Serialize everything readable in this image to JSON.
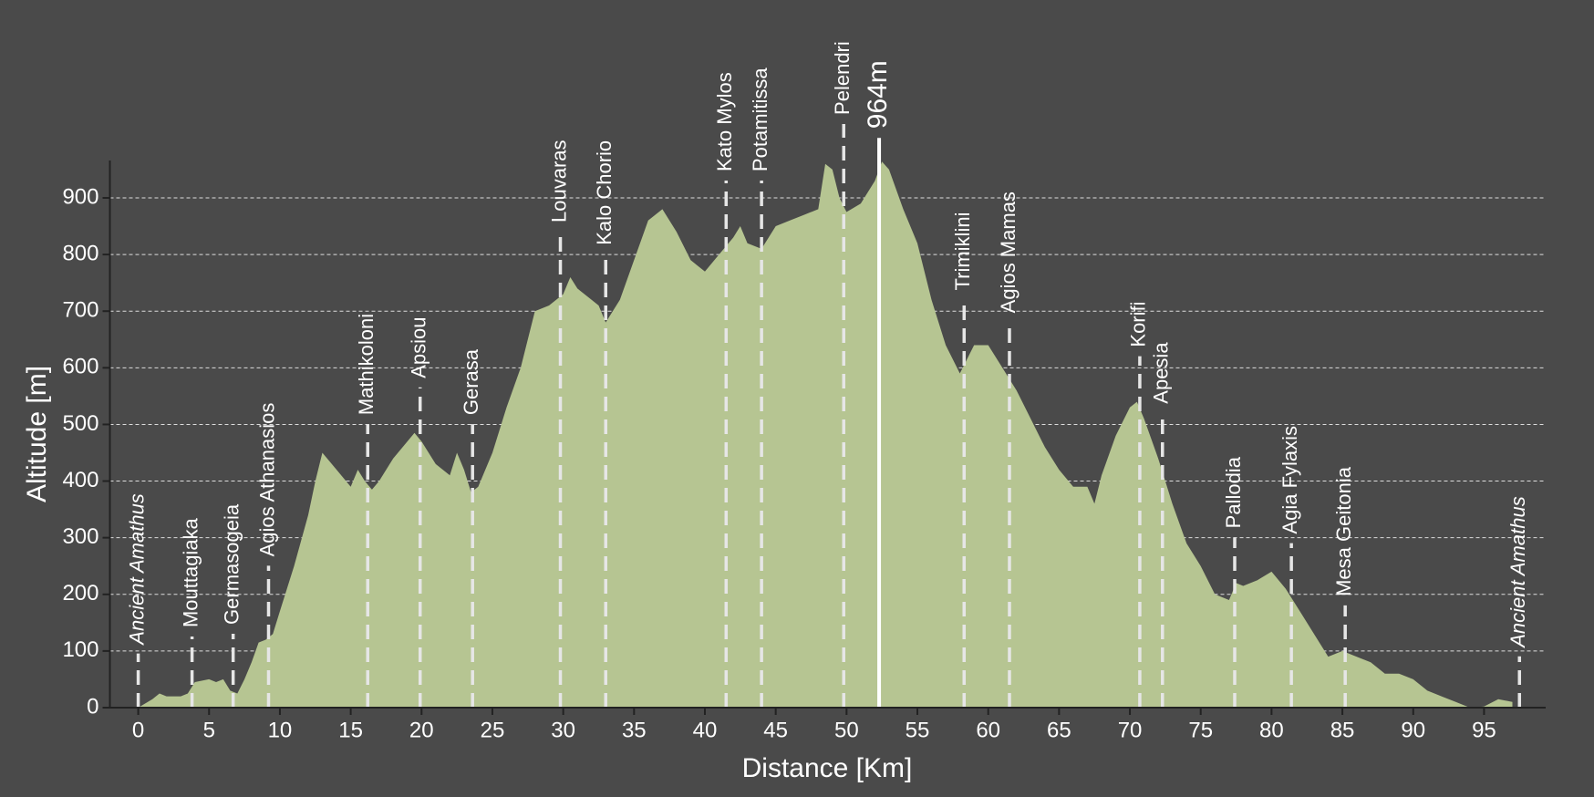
{
  "chart_data": {
    "type": "area",
    "x_label": "Distance [Km]",
    "y_label": "Altitude [m]",
    "color": "#b6c592",
    "background": "#4a4a4a",
    "grid": true,
    "xlim": [
      -2,
      99.35
    ],
    "ylim": [
      0,
      966
    ],
    "xticks": [
      0,
      5,
      10,
      15,
      20,
      25,
      30,
      35,
      40,
      45,
      50,
      55,
      60,
      65,
      70,
      75,
      80,
      85,
      90,
      95
    ],
    "yticks": [
      0,
      100,
      200,
      300,
      400,
      500,
      600,
      700,
      800,
      900
    ],
    "x": [
      0,
      1,
      1.5,
      2,
      3,
      3.5,
      4,
      5,
      5.5,
      6,
      6.5,
      7,
      7.5,
      8,
      8.5,
      9,
      9.5,
      10,
      11,
      12,
      12.5,
      13,
      14,
      15,
      15.5,
      16,
      16.5,
      17,
      18,
      19,
      19.5,
      20,
      21,
      22,
      22.5,
      23,
      23.5,
      24,
      25,
      26,
      27,
      28,
      29,
      30,
      30.5,
      31,
      32,
      32.5,
      33,
      34,
      35,
      36,
      37,
      38,
      39,
      40,
      41,
      42,
      42.5,
      43,
      44,
      45,
      46,
      47,
      48,
      48.5,
      49,
      49.5,
      50,
      51,
      52,
      52.5,
      53,
      54,
      55,
      56,
      57,
      58,
      59,
      60,
      61,
      62,
      63,
      64,
      65,
      66,
      67,
      67.5,
      68,
      69,
      70,
      70.5,
      71,
      72,
      73,
      74,
      75,
      76,
      77,
      77.5,
      78,
      79,
      80,
      81,
      82,
      83,
      84,
      85,
      86,
      87,
      88,
      89,
      90,
      91,
      92,
      93,
      94,
      95,
      96,
      97
    ],
    "values": [
      0,
      15,
      25,
      20,
      20,
      25,
      45,
      50,
      45,
      50,
      30,
      25,
      50,
      80,
      115,
      120,
      130,
      170,
      250,
      340,
      400,
      450,
      420,
      390,
      420,
      400,
      385,
      400,
      440,
      470,
      485,
      470,
      430,
      410,
      450,
      420,
      380,
      390,
      450,
      530,
      600,
      700,
      710,
      730,
      760,
      740,
      720,
      710,
      680,
      720,
      790,
      860,
      880,
      840,
      790,
      770,
      800,
      830,
      850,
      820,
      810,
      850,
      860,
      870,
      880,
      960,
      950,
      900,
      875,
      890,
      930,
      964,
      950,
      880,
      820,
      720,
      640,
      590,
      640,
      640,
      600,
      560,
      510,
      460,
      420,
      390,
      390,
      360,
      410,
      480,
      530,
      540,
      510,
      440,
      360,
      290,
      250,
      200,
      190,
      220,
      215,
      225,
      240,
      210,
      170,
      130,
      90,
      100,
      90,
      80,
      60,
      60,
      50,
      30,
      20,
      10,
      0,
      2,
      15,
      10
    ],
    "markers": [
      {
        "name": "Ancient Amathus",
        "x": 0,
        "italic": true
      },
      {
        "name": "Mouttagiaka",
        "x": 3.8
      },
      {
        "name": "Germasogeia",
        "x": 6.7
      },
      {
        "name": "Agios Athanasios",
        "x": 9.2
      },
      {
        "name": "Mathikoloni",
        "x": 16.2
      },
      {
        "name": "Apsiou",
        "x": 19.9
      },
      {
        "name": "Gerasa",
        "x": 23.6
      },
      {
        "name": "Louvaras",
        "x": 29.8
      },
      {
        "name": "Kalo Chorio",
        "x": 33.0
      },
      {
        "name": "Kato Mylos",
        "x": 41.5
      },
      {
        "name": "Potamitissa",
        "x": 44.0
      },
      {
        "name": "Pelendri",
        "x": 49.8
      },
      {
        "name": "Trimiklini",
        "x": 58.3
      },
      {
        "name": "Agios Mamas",
        "x": 61.5
      },
      {
        "name": "Korifi",
        "x": 70.7
      },
      {
        "name": "Apesia",
        "x": 72.3
      },
      {
        "name": "Pallodia",
        "x": 77.4
      },
      {
        "name": "Agia Fylaxis",
        "x": 81.4
      },
      {
        "name": "Mesa Geitonia",
        "x": 85.2
      },
      {
        "name": "Ancient Amathus",
        "x": 97.5,
        "italic": true
      }
    ],
    "peak": {
      "x": 52.3,
      "value": 964,
      "label": "964m"
    }
  }
}
